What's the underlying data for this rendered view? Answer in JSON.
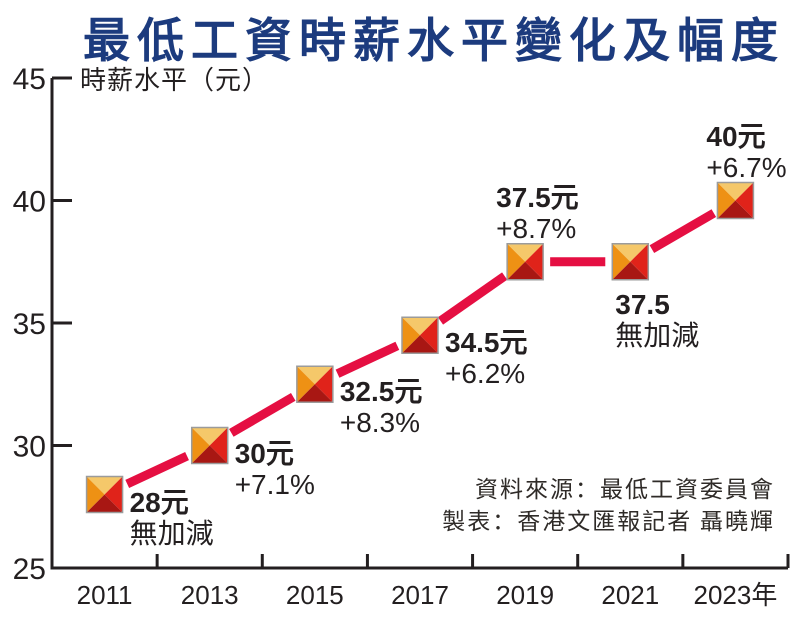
{
  "chart_data": {
    "type": "line",
    "title": "最低工資時薪水平變化及幅度",
    "ylabel": "時薪水平（元）",
    "ylim": [
      25,
      45
    ],
    "yticks": [
      25,
      30,
      35,
      40,
      45
    ],
    "ytick_labels": [
      "25",
      "30",
      "35",
      "40",
      "45"
    ],
    "x_tick_labels": [
      "2011",
      "2013",
      "2015",
      "2017",
      "2019",
      "2021",
      "2023年"
    ],
    "values": [
      28,
      30,
      32.5,
      34.5,
      37.5,
      37.5,
      40
    ],
    "points": [
      {
        "year": "2011",
        "value": 28,
        "value_label": "28元",
        "change_label": "無加減",
        "label_pos": "right"
      },
      {
        "year": "2013",
        "value": 30,
        "value_label": "30元",
        "change_label": "+7.1%",
        "label_pos": "right"
      },
      {
        "year": "2015",
        "value": 32.5,
        "value_label": "32.5元",
        "change_label": "+8.3%",
        "label_pos": "right"
      },
      {
        "year": "2017",
        "value": 34.5,
        "value_label": "34.5元",
        "change_label": "+6.2%",
        "label_pos": "right"
      },
      {
        "year": "2019",
        "value": 37.5,
        "value_label": "37.5元",
        "change_label": "+8.7%",
        "label_pos": "above"
      },
      {
        "year": "2021",
        "value": 37.5,
        "value_label": "37.5",
        "change_label": "無加減",
        "label_pos": "below"
      },
      {
        "year": "2023",
        "value": 40,
        "value_label": "40元",
        "change_label": "+6.7%",
        "label_pos": "above"
      }
    ],
    "grid": false,
    "legend": "none",
    "source_line1": "資料來源：最低工資委員會",
    "source_line2": "製表：香港文匯報記者 聶曉輝"
  },
  "colors": {
    "title_blue": "#1c3b7e",
    "line_red": "#e50f42",
    "axis": "#231f20",
    "text": "#231f20",
    "source_text": "#2f2b28",
    "marker_top": "#f5c86a",
    "marker_left": "#ee9114",
    "marker_right": "#e0231a",
    "marker_bottom": "#a81713",
    "marker_border": "#9b9b9b"
  }
}
